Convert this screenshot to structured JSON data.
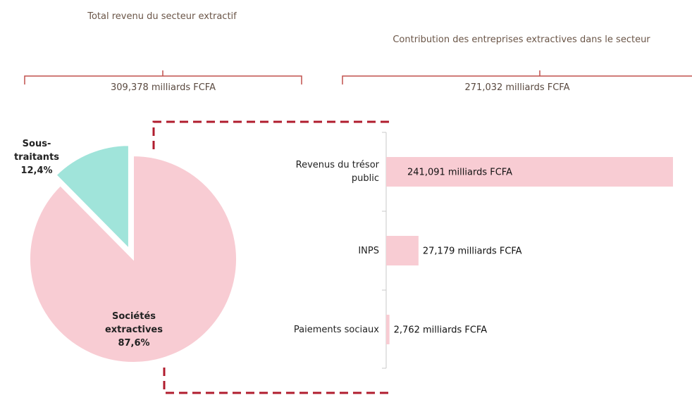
{
  "chart_data": [
    {
      "type": "pie",
      "title": "Total revenu du secteur extractif",
      "subtitle": "309,378 milliards FCFA",
      "categories": [
        "Sociétés extractives",
        "Sous-traitants"
      ],
      "values": [
        87.6,
        12.4
      ],
      "value_labels": [
        "87,6%",
        "12,4%"
      ],
      "colors": [
        "#f8ccd3",
        "#a0e4da"
      ],
      "explode": [
        false,
        true
      ]
    },
    {
      "type": "bar",
      "title": "Contribution des entreprises extractives dans le secteur",
      "subtitle": "271,032 milliards FCFA",
      "categories": [
        "Revenus du trésor public",
        "INPS",
        "Paiements sociaux"
      ],
      "values": [
        241.091,
        27.179,
        2.762
      ],
      "value_labels": [
        "241,091 milliards FCFA",
        "27,179 milliards FCFA",
        "2,762 milliards FCFA"
      ],
      "color": "#f8ccd3",
      "orientation": "horizontal"
    }
  ]
}
